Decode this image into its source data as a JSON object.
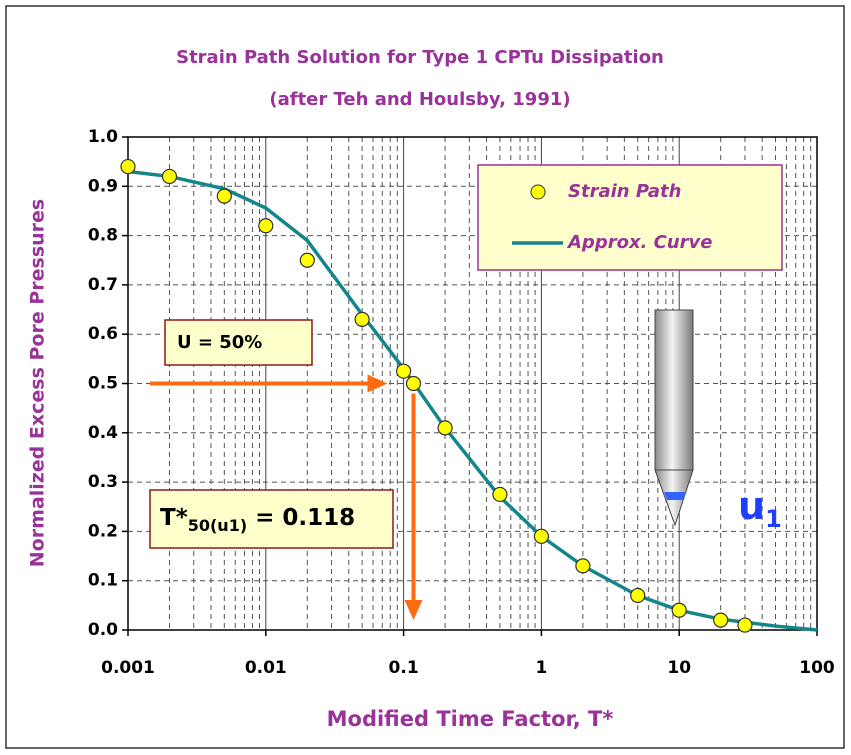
{
  "chart_data": {
    "type": "scatter_line",
    "title": "Strain Path Solution for Type 1 CPTu Dissipation",
    "subtitle": "(after Teh and Houlsby, 1991)",
    "x_label": "Modified Time Factor, T*",
    "y_label": "Normalized Excess Pore Pressures",
    "log_x": true,
    "xlim": [
      0.001,
      100
    ],
    "xticks": [
      0.001,
      0.01,
      0.1,
      1,
      10,
      100
    ],
    "ylim": [
      0,
      1
    ],
    "yticks": [
      {
        "value": 0,
        "label": "0.0"
      },
      0.1,
      0.2,
      0.3,
      0.4,
      0.5,
      0.6,
      0.7,
      0.8,
      0.9,
      {
        "value": 1,
        "label": "1.0"
      }
    ],
    "grid": true,
    "minor_grid": true,
    "legend": "top-right",
    "series": [
      {
        "name": "Strain Path",
        "kind": "scatter",
        "color": "#ffff00",
        "x": [
          0.001,
          0.002,
          0.005,
          0.01,
          0.02,
          0.05,
          0.1,
          0.118,
          0.2,
          0.5,
          1,
          2,
          5,
          10,
          20,
          30
        ],
        "values": [
          0.94,
          0.92,
          0.88,
          0.82,
          0.75,
          0.63,
          0.525,
          0.5,
          0.41,
          0.275,
          0.19,
          0.13,
          0.07,
          0.04,
          0.02,
          0.01
        ]
      },
      {
        "name": "Approx. Curve",
        "kind": "line",
        "color": "#14868a",
        "x": [
          0.001,
          0.002,
          0.005,
          0.01,
          0.02,
          0.05,
          0.1,
          0.2,
          0.5,
          1,
          2,
          5,
          10,
          20,
          50,
          100
        ],
        "values": [
          0.93,
          0.92,
          0.895,
          0.856,
          0.79,
          0.64,
          0.53,
          0.41,
          0.27,
          0.19,
          0.13,
          0.07,
          0.04,
          0.022,
          0.008,
          0.0
        ]
      }
    ],
    "annotations": {
      "u50": "U = 50%",
      "t50": {
        "main": "T*",
        "sub": "50(u1)",
        "rest": " = 0.118"
      },
      "arrow_to": {
        "x": 0.118,
        "y": 0.5
      },
      "probe": {
        "main": "u",
        "sub": "1"
      }
    }
  }
}
